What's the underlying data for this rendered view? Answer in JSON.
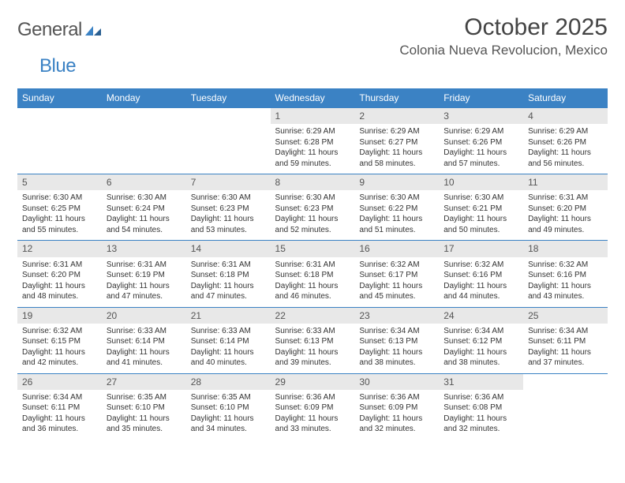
{
  "logo": {
    "text1": "General",
    "text2": "Blue"
  },
  "title": "October 2025",
  "location": "Colonia Nueva Revolucion, Mexico",
  "colors": {
    "header_bg": "#3b82c4",
    "header_text": "#ffffff",
    "daynum_bg": "#e8e8e8",
    "border": "#3b82c4",
    "body_text": "#333333"
  },
  "fonts": {
    "title_size": 30,
    "location_size": 17,
    "dayhead_size": 12,
    "cell_size": 10
  },
  "day_headers": [
    "Sunday",
    "Monday",
    "Tuesday",
    "Wednesday",
    "Thursday",
    "Friday",
    "Saturday"
  ],
  "weeks": [
    [
      {
        "n": "",
        "sr": "",
        "ss": "",
        "dl": ""
      },
      {
        "n": "",
        "sr": "",
        "ss": "",
        "dl": ""
      },
      {
        "n": "",
        "sr": "",
        "ss": "",
        "dl": ""
      },
      {
        "n": "1",
        "sr": "6:29 AM",
        "ss": "6:28 PM",
        "dl": "11 hours and 59 minutes."
      },
      {
        "n": "2",
        "sr": "6:29 AM",
        "ss": "6:27 PM",
        "dl": "11 hours and 58 minutes."
      },
      {
        "n": "3",
        "sr": "6:29 AM",
        "ss": "6:26 PM",
        "dl": "11 hours and 57 minutes."
      },
      {
        "n": "4",
        "sr": "6:29 AM",
        "ss": "6:26 PM",
        "dl": "11 hours and 56 minutes."
      }
    ],
    [
      {
        "n": "5",
        "sr": "6:30 AM",
        "ss": "6:25 PM",
        "dl": "11 hours and 55 minutes."
      },
      {
        "n": "6",
        "sr": "6:30 AM",
        "ss": "6:24 PM",
        "dl": "11 hours and 54 minutes."
      },
      {
        "n": "7",
        "sr": "6:30 AM",
        "ss": "6:23 PM",
        "dl": "11 hours and 53 minutes."
      },
      {
        "n": "8",
        "sr": "6:30 AM",
        "ss": "6:23 PM",
        "dl": "11 hours and 52 minutes."
      },
      {
        "n": "9",
        "sr": "6:30 AM",
        "ss": "6:22 PM",
        "dl": "11 hours and 51 minutes."
      },
      {
        "n": "10",
        "sr": "6:30 AM",
        "ss": "6:21 PM",
        "dl": "11 hours and 50 minutes."
      },
      {
        "n": "11",
        "sr": "6:31 AM",
        "ss": "6:20 PM",
        "dl": "11 hours and 49 minutes."
      }
    ],
    [
      {
        "n": "12",
        "sr": "6:31 AM",
        "ss": "6:20 PM",
        "dl": "11 hours and 48 minutes."
      },
      {
        "n": "13",
        "sr": "6:31 AM",
        "ss": "6:19 PM",
        "dl": "11 hours and 47 minutes."
      },
      {
        "n": "14",
        "sr": "6:31 AM",
        "ss": "6:18 PM",
        "dl": "11 hours and 47 minutes."
      },
      {
        "n": "15",
        "sr": "6:31 AM",
        "ss": "6:18 PM",
        "dl": "11 hours and 46 minutes."
      },
      {
        "n": "16",
        "sr": "6:32 AM",
        "ss": "6:17 PM",
        "dl": "11 hours and 45 minutes."
      },
      {
        "n": "17",
        "sr": "6:32 AM",
        "ss": "6:16 PM",
        "dl": "11 hours and 44 minutes."
      },
      {
        "n": "18",
        "sr": "6:32 AM",
        "ss": "6:16 PM",
        "dl": "11 hours and 43 minutes."
      }
    ],
    [
      {
        "n": "19",
        "sr": "6:32 AM",
        "ss": "6:15 PM",
        "dl": "11 hours and 42 minutes."
      },
      {
        "n": "20",
        "sr": "6:33 AM",
        "ss": "6:14 PM",
        "dl": "11 hours and 41 minutes."
      },
      {
        "n": "21",
        "sr": "6:33 AM",
        "ss": "6:14 PM",
        "dl": "11 hours and 40 minutes."
      },
      {
        "n": "22",
        "sr": "6:33 AM",
        "ss": "6:13 PM",
        "dl": "11 hours and 39 minutes."
      },
      {
        "n": "23",
        "sr": "6:34 AM",
        "ss": "6:13 PM",
        "dl": "11 hours and 38 minutes."
      },
      {
        "n": "24",
        "sr": "6:34 AM",
        "ss": "6:12 PM",
        "dl": "11 hours and 38 minutes."
      },
      {
        "n": "25",
        "sr": "6:34 AM",
        "ss": "6:11 PM",
        "dl": "11 hours and 37 minutes."
      }
    ],
    [
      {
        "n": "26",
        "sr": "6:34 AM",
        "ss": "6:11 PM",
        "dl": "11 hours and 36 minutes."
      },
      {
        "n": "27",
        "sr": "6:35 AM",
        "ss": "6:10 PM",
        "dl": "11 hours and 35 minutes."
      },
      {
        "n": "28",
        "sr": "6:35 AM",
        "ss": "6:10 PM",
        "dl": "11 hours and 34 minutes."
      },
      {
        "n": "29",
        "sr": "6:36 AM",
        "ss": "6:09 PM",
        "dl": "11 hours and 33 minutes."
      },
      {
        "n": "30",
        "sr": "6:36 AM",
        "ss": "6:09 PM",
        "dl": "11 hours and 32 minutes."
      },
      {
        "n": "31",
        "sr": "6:36 AM",
        "ss": "6:08 PM",
        "dl": "11 hours and 32 minutes."
      },
      {
        "n": "",
        "sr": "",
        "ss": "",
        "dl": ""
      }
    ]
  ],
  "labels": {
    "sunrise": "Sunrise:",
    "sunset": "Sunset:",
    "daylight": "Daylight:"
  }
}
